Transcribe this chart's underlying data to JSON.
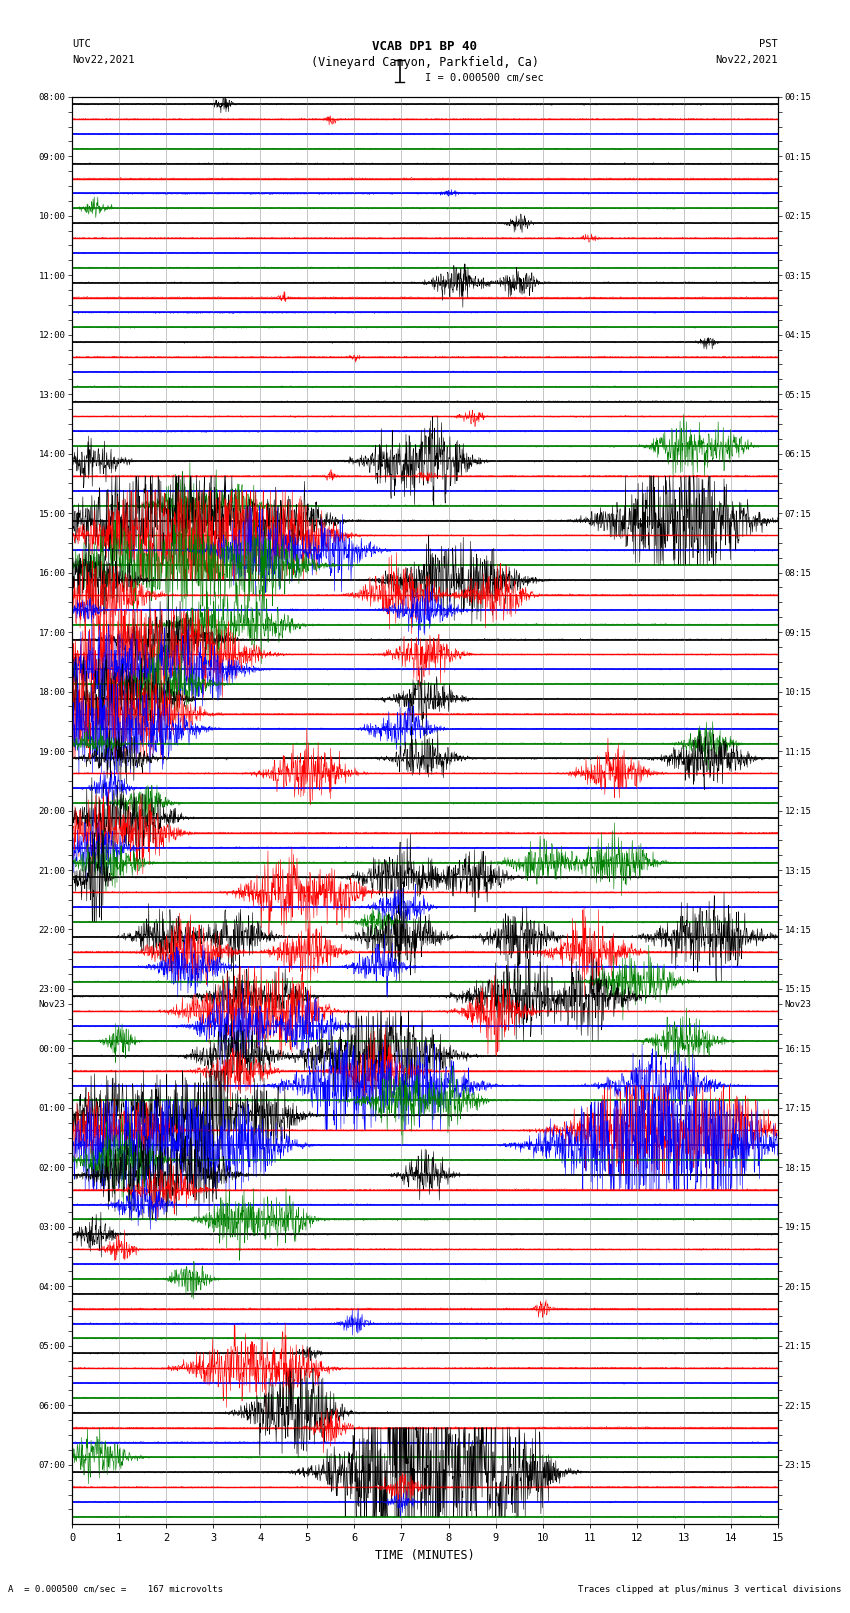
{
  "title_line1": "VCAB DP1 BP 40",
  "title_line2": "(Vineyard Canyon, Parkfield, Ca)",
  "scale_label": "I = 0.000500 cm/sec",
  "left_header_top": "UTC",
  "left_header_bot": "Nov22,2021",
  "right_header_top": "PST",
  "right_header_bot": "Nov22,2021",
  "bottom_label": "TIME (MINUTES)",
  "footer_left": "A  = 0.000500 cm/sec =    167 microvolts",
  "footer_right": "Traces clipped at plus/minus 3 vertical divisions",
  "utc_labels": [
    "08:00",
    "",
    "",
    "",
    "09:00",
    "",
    "",
    "",
    "10:00",
    "",
    "",
    "",
    "11:00",
    "",
    "",
    "",
    "12:00",
    "",
    "",
    "",
    "13:00",
    "",
    "",
    "",
    "14:00",
    "",
    "",
    "",
    "15:00",
    "",
    "",
    "",
    "16:00",
    "",
    "",
    "",
    "17:00",
    "",
    "",
    "",
    "18:00",
    "",
    "",
    "",
    "19:00",
    "",
    "",
    "",
    "20:00",
    "",
    "",
    "",
    "21:00",
    "",
    "",
    "",
    "22:00",
    "",
    "",
    "",
    "23:00",
    "Nov23",
    "",
    "",
    "00:00",
    "",
    "",
    "",
    "01:00",
    "",
    "",
    "",
    "02:00",
    "",
    "",
    "",
    "03:00",
    "",
    "",
    "",
    "04:00",
    "",
    "",
    "",
    "05:00",
    "",
    "",
    "",
    "06:00",
    "",
    "",
    "",
    "07:00",
    "",
    "",
    ""
  ],
  "pst_labels": [
    "00:15",
    "",
    "",
    "",
    "01:15",
    "",
    "",
    "",
    "02:15",
    "",
    "",
    "",
    "03:15",
    "",
    "",
    "",
    "04:15",
    "",
    "",
    "",
    "05:15",
    "",
    "",
    "",
    "06:15",
    "",
    "",
    "",
    "07:15",
    "",
    "",
    "",
    "08:15",
    "",
    "",
    "",
    "09:15",
    "",
    "",
    "",
    "10:15",
    "",
    "",
    "",
    "11:15",
    "",
    "",
    "",
    "12:15",
    "",
    "",
    "",
    "13:15",
    "",
    "",
    "",
    "14:15",
    "",
    "",
    "",
    "15:15",
    "Nov23",
    "",
    "",
    "16:15",
    "",
    "",
    "",
    "17:15",
    "",
    "",
    "",
    "18:15",
    "",
    "",
    "",
    "19:15",
    "",
    "",
    "",
    "20:15",
    "",
    "",
    "",
    "21:15",
    "",
    "",
    "",
    "22:15",
    "",
    "",
    "",
    "23:15",
    "",
    "",
    ""
  ],
  "n_rows": 96,
  "n_channels": 4,
  "channel_colors": [
    "black",
    "red",
    "blue",
    "green"
  ],
  "bg_color": "white",
  "n_minutes": 15,
  "channel_lw": [
    0.5,
    0.5,
    0.5,
    0.5
  ],
  "baseline_lw": [
    1.2,
    1.2,
    1.5,
    1.5
  ],
  "baseline_colors": [
    "black",
    "red",
    "blue",
    "green"
  ]
}
